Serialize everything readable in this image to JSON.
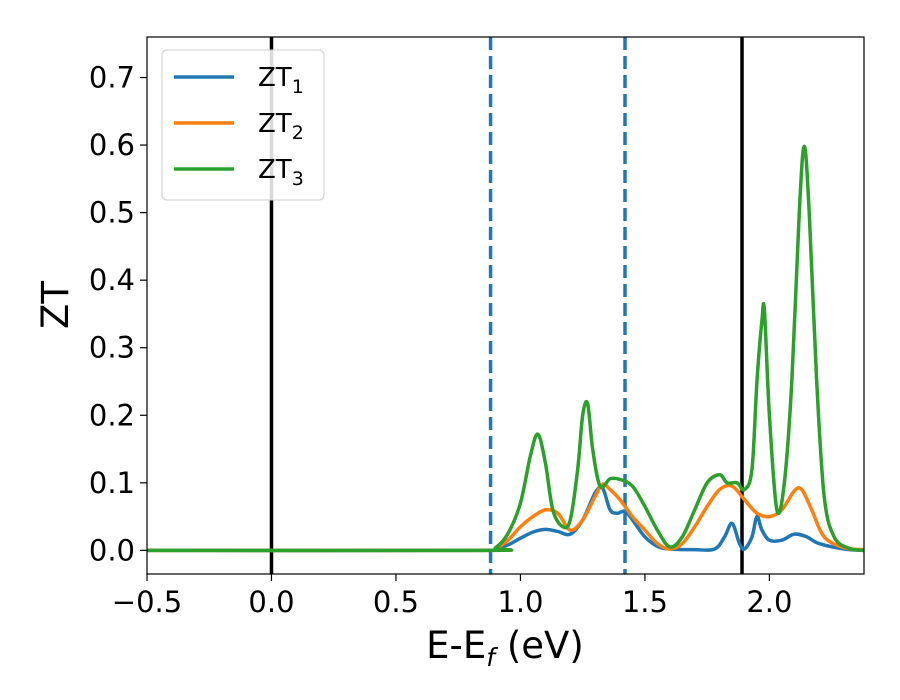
{
  "chart_data": {
    "type": "line",
    "xlabel": {
      "main": "E-E",
      "sub": "f",
      "tail": " (eV)"
    },
    "ylabel": "ZT",
    "xlim": [
      -0.5,
      2.38
    ],
    "ylim": [
      -0.035,
      0.76
    ],
    "x_ticks": [
      -0.5,
      0.0,
      0.5,
      1.0,
      1.5,
      2.0
    ],
    "x_tick_labels": [
      "−0.5",
      "0.0",
      "0.5",
      "1.0",
      "1.5",
      "2.0"
    ],
    "y_ticks": [
      0.0,
      0.1,
      0.2,
      0.3,
      0.4,
      0.5,
      0.6,
      0.7
    ],
    "y_tick_labels": [
      "0.0",
      "0.1",
      "0.2",
      "0.3",
      "0.4",
      "0.5",
      "0.6",
      "0.7"
    ],
    "legend_position": "upper-left",
    "vertical_lines": [
      {
        "x": 0.0,
        "color": "#000000",
        "style": "solid"
      },
      {
        "x": 1.89,
        "color": "#000000",
        "style": "solid"
      },
      {
        "x": 0.88,
        "color": "#1f77b4",
        "style": "dashed"
      },
      {
        "x": 1.42,
        "color": "#1f77b4",
        "style": "dashed"
      }
    ],
    "series": [
      {
        "name": "ZT",
        "sub": "1",
        "color": "#1f77b4",
        "x": [
          -0.5,
          0.85,
          0.9,
          0.95,
          1.0,
          1.05,
          1.1,
          1.15,
          1.2,
          1.25,
          1.3,
          1.33,
          1.36,
          1.39,
          1.42,
          1.45,
          1.5,
          1.55,
          1.6,
          1.7,
          1.78,
          1.82,
          1.85,
          1.88,
          1.9,
          1.93,
          1.95,
          1.97,
          2.0,
          2.05,
          2.1,
          2.15,
          2.2,
          2.3,
          2.38
        ],
        "y": [
          0.0,
          0.0,
          0.002,
          0.008,
          0.018,
          0.027,
          0.031,
          0.028,
          0.024,
          0.045,
          0.085,
          0.092,
          0.06,
          0.055,
          0.058,
          0.045,
          0.02,
          0.006,
          0.002,
          0.001,
          0.002,
          0.02,
          0.04,
          0.01,
          0.002,
          0.02,
          0.05,
          0.03,
          0.015,
          0.015,
          0.024,
          0.02,
          0.01,
          0.002,
          0.0
        ]
      },
      {
        "name": "ZT",
        "sub": "2",
        "color": "#ff7f0e",
        "x": [
          -0.5,
          0.85,
          0.9,
          0.95,
          1.0,
          1.05,
          1.1,
          1.15,
          1.2,
          1.25,
          1.3,
          1.33,
          1.36,
          1.4,
          1.45,
          1.5,
          1.55,
          1.6,
          1.65,
          1.7,
          1.75,
          1.8,
          1.85,
          1.9,
          1.95,
          2.0,
          2.05,
          2.1,
          2.13,
          2.17,
          2.22,
          2.3,
          2.38
        ],
        "y": [
          0.0,
          0.0,
          0.003,
          0.015,
          0.035,
          0.05,
          0.06,
          0.055,
          0.03,
          0.045,
          0.08,
          0.098,
          0.09,
          0.075,
          0.05,
          0.03,
          0.01,
          0.002,
          0.01,
          0.035,
          0.065,
          0.09,
          0.095,
          0.075,
          0.055,
          0.05,
          0.06,
          0.088,
          0.09,
          0.06,
          0.02,
          0.004,
          0.001
        ]
      },
      {
        "name": "ZT",
        "sub": "3",
        "color": "#2ca02c",
        "x": [
          -0.5,
          0.85,
          0.9,
          0.95,
          1.0,
          1.04,
          1.07,
          1.1,
          1.13,
          1.17,
          1.2,
          1.23,
          1.25,
          1.27,
          1.29,
          1.32,
          1.36,
          1.4,
          1.45,
          1.5,
          1.55,
          1.6,
          1.65,
          1.7,
          1.75,
          1.8,
          1.83,
          1.87,
          1.9,
          1.93,
          1.95,
          1.97,
          1.98,
          2.0,
          2.03,
          2.06,
          2.09,
          2.12,
          2.14,
          2.16,
          2.19,
          2.22,
          2.26,
          2.32,
          2.38
        ],
        "y": [
          0.0,
          0.0,
          0.004,
          0.025,
          0.07,
          0.14,
          0.172,
          0.13,
          0.06,
          0.035,
          0.045,
          0.12,
          0.2,
          0.217,
          0.15,
          0.095,
          0.106,
          0.105,
          0.095,
          0.065,
          0.03,
          0.005,
          0.02,
          0.06,
          0.1,
          0.112,
          0.1,
          0.1,
          0.09,
          0.12,
          0.25,
          0.34,
          0.355,
          0.2,
          0.06,
          0.1,
          0.25,
          0.5,
          0.598,
          0.5,
          0.25,
          0.08,
          0.02,
          0.003,
          0.0
        ]
      }
    ]
  }
}
